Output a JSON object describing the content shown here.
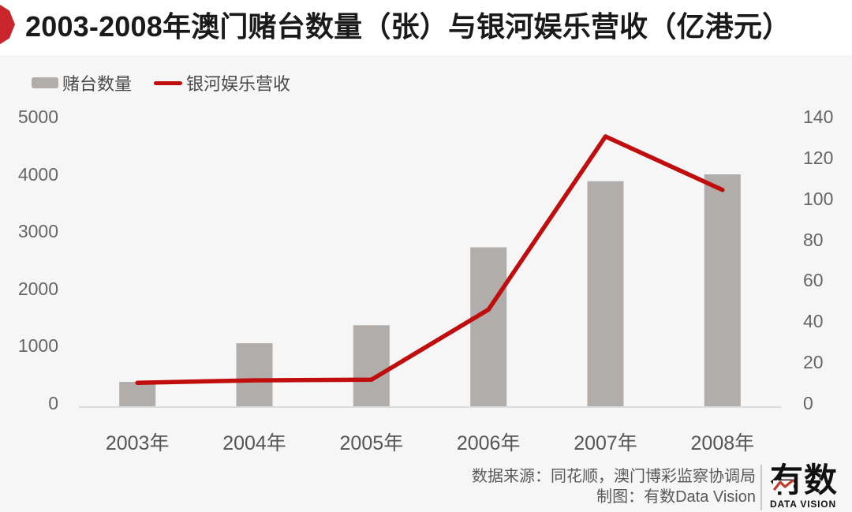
{
  "header": {
    "badge_color": "#c9252b"
  },
  "legend": {
    "bar_label": "赌台数量",
    "line_label": "银河娱乐营收"
  },
  "colors": {
    "background": "#f6f6f6",
    "title_band": "#ffffff",
    "bar": "#b0adab",
    "line": "#c00d0d",
    "axis_line": "#dcdcdc",
    "badge": "#c9252b",
    "logo_red": "#c0392b"
  },
  "chart_data": {
    "type": "bar+line combo",
    "title": "2003-2008年澳门赌台数量（张）与银河娱乐营收（亿港元）",
    "categories": [
      "2003年",
      "2004年",
      "2005年",
      "2006年",
      "2007年",
      "2008年"
    ],
    "series": [
      {
        "name": "赌台数量",
        "type": "bar",
        "axis": "left",
        "values": [
          425,
          1100,
          1415,
          2775,
          3930,
          4050
        ]
      },
      {
        "name": "银河娱乐营收",
        "type": "line",
        "axis": "right",
        "values": [
          11.5,
          12.7,
          13.0,
          47.3,
          131.9,
          105.8
        ]
      }
    ],
    "left_axis": {
      "min": 0,
      "max": 5000,
      "ticks": [
        0,
        1000,
        2000,
        3000,
        4000,
        5000
      ]
    },
    "right_axis": {
      "min": 0,
      "max": 140,
      "ticks": [
        0,
        20,
        40,
        60,
        80,
        100,
        120,
        140
      ]
    },
    "grid": "off",
    "legend_position": "top-left"
  },
  "footer": {
    "source_line": "数据来源：同花顺，澳门博彩监察协调局",
    "credit_line": "制图：有数Data Vision",
    "logo_text": "有数",
    "logo_subtext": "DATA VISION"
  }
}
